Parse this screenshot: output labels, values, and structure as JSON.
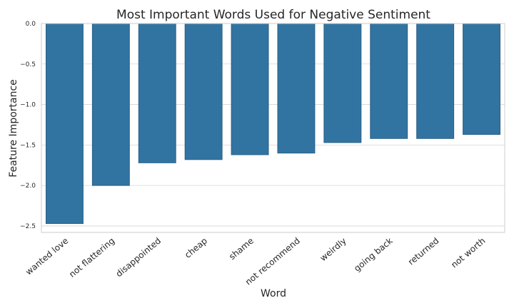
{
  "chart_data": {
    "type": "bar",
    "title": "Most Important Words Used for Negative Sentiment",
    "xlabel": "Word",
    "ylabel": "Feature Importance",
    "categories": [
      "wanted love",
      "not flattering",
      "disappointed",
      "cheap",
      "shame",
      "not recommend",
      "weirdly",
      "going back",
      "returned",
      "not worth"
    ],
    "values": [
      -2.47,
      -2.0,
      -1.72,
      -1.68,
      -1.62,
      -1.6,
      -1.47,
      -1.42,
      -1.42,
      -1.37
    ],
    "ylim": [
      -2.58,
      0.0
    ],
    "yticks": [
      0.0,
      -0.5,
      -1.0,
      -1.5,
      -2.0,
      -2.5
    ],
    "ytick_labels": [
      "0.0",
      "−0.5",
      "−1.0",
      "−1.5",
      "−2.0",
      "−2.5"
    ],
    "grid": true,
    "bar_color": "#3274a1",
    "bar_edge_color": "#2a5f86"
  }
}
